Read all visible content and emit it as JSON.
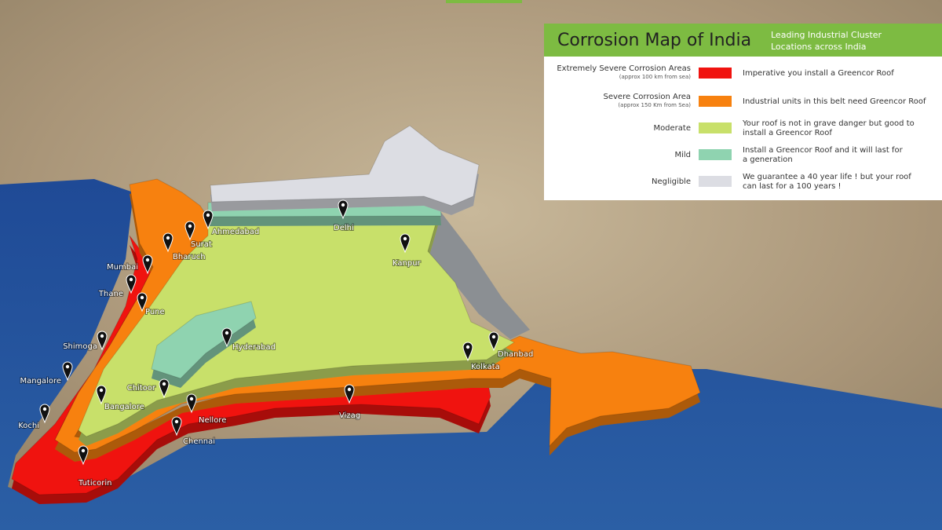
{
  "title": "Corrosion Map of India",
  "subtitle": [
    "Leading Industrial Cluster",
    "Locations across India"
  ],
  "legend": [
    {
      "label": "Extremely Severe Corrosion Areas",
      "note": "(approx 100 km from sea)",
      "color": "#f0130f",
      "description": [
        "Imperative you install a Greencor Roof"
      ]
    },
    {
      "label": "Severe Corrosion Area",
      "note": "(approx 150 Km from Sea)",
      "color": "#f7810f",
      "description": [
        "Industrial units in this belt need Greencor Roof"
      ]
    },
    {
      "label": "Moderate",
      "color": "#c8e06a",
      "description": [
        "Your roof is not in grave danger but good to",
        "install a Greencor Roof"
      ]
    },
    {
      "label": "Mild",
      "color": "#8fd3b0",
      "description": [
        "Install a Greencor Roof and it will last for",
        "a generation"
      ]
    },
    {
      "label": "Negligible",
      "color": "#dcdde3",
      "description": [
        "We guarantee a 40 year life !  but your roof",
        "can last for a 100 years !"
      ]
    }
  ],
  "cities": [
    "Ahmedabad",
    "Surat",
    "Bharuch",
    "Mumbai",
    "Thane",
    "Pune",
    "Shimoga",
    "Mangalore",
    "Kochi",
    "Bangalore",
    "Chitoor",
    "Nellore",
    "Chennai",
    "Tuticorin",
    "Vizag",
    "Kolkata",
    "Dhanbad",
    "Delhi",
    "Kanpur",
    "Hyderabad"
  ]
}
